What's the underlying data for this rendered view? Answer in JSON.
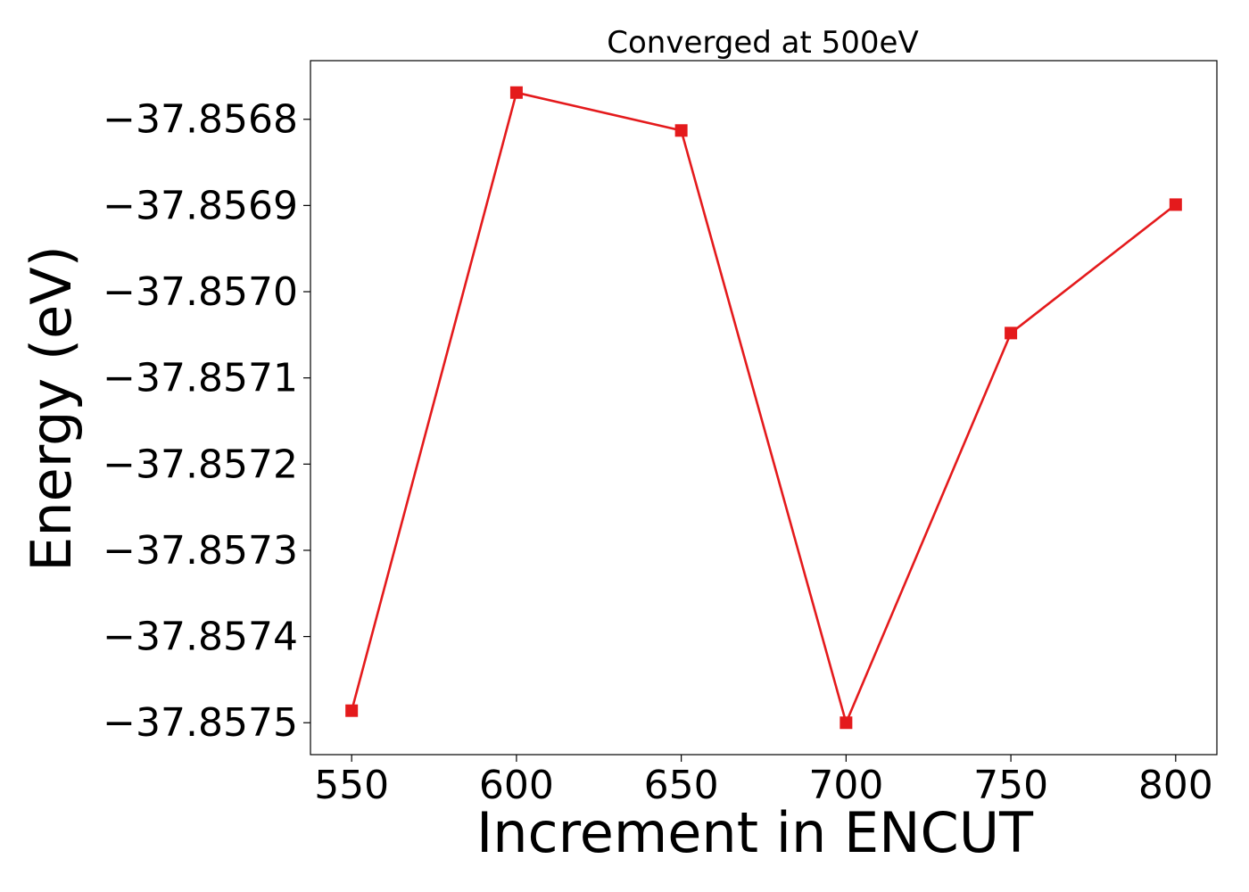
{
  "chart_data": {
    "type": "line",
    "title": "Converged at 500eV",
    "xlabel": "Increment in ENCUT",
    "ylabel": "Energy (eV)",
    "x": [
      550,
      600,
      650,
      700,
      750,
      800
    ],
    "series": [
      {
        "values": [
          -37.857486,
          -37.856769,
          -37.856813,
          -37.8575,
          -37.857048,
          -37.856899
        ],
        "color": "#e41a1c",
        "marker": "square"
      }
    ],
    "xlim": [
      537.5,
      812.5
    ],
    "ylim": [
      -37.857537,
      -37.856732
    ],
    "x_ticks": [
      550,
      600,
      650,
      700,
      750,
      800
    ],
    "x_tick_labels": [
      "550",
      "600",
      "650",
      "700",
      "750",
      "800"
    ],
    "y_ticks": [
      -37.8575,
      -37.8574,
      -37.8573,
      -37.8572,
      -37.8571,
      -37.857,
      -37.8569,
      -37.8568
    ],
    "y_tick_labels": [
      "−37.8575",
      "−37.8574",
      "−37.8573",
      "−37.8572",
      "−37.8571",
      "−37.8570",
      "−37.8569",
      "−37.8568"
    ],
    "grid": false,
    "legend": "none"
  }
}
